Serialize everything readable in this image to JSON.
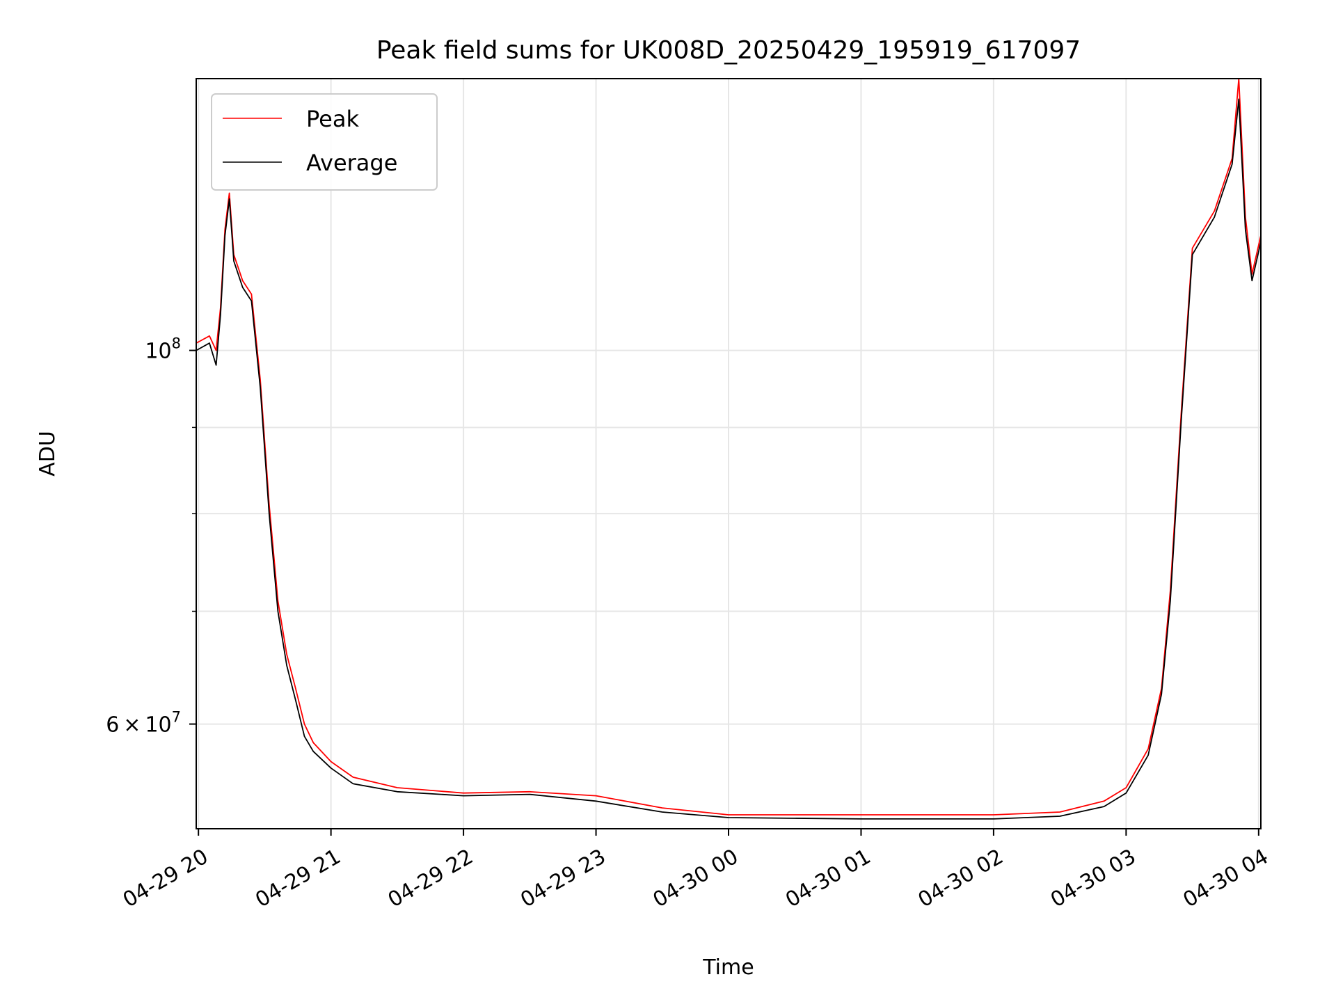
{
  "chart_data": {
    "type": "line",
    "title": "Peak field sums for UK008D_20250429_195919_617097",
    "xlabel": "Time",
    "ylabel": "ADU",
    "x_tick_labels": [
      "04-29 20",
      "04-29 21",
      "04-29 22",
      "04-29 23",
      "04-30 00",
      "04-30 01",
      "04-30 02",
      "04-30 03",
      "04-30 04"
    ],
    "x_ticks": [
      "2025-04-29 20:00",
      "2025-04-29 21:00",
      "2025-04-29 22:00",
      "2025-04-29 23:00",
      "2025-04-30 00:00",
      "2025-04-30 01:00",
      "2025-04-30 02:00",
      "2025-04-30 03:00",
      "2025-04-30 04:00"
    ],
    "xlim": [
      "2025-04-29 19:59",
      "2025-04-30 04:01"
    ],
    "y_scale": "log",
    "ylim": [
      52000000,
      145000000
    ],
    "y_major_ticks": [
      {
        "value": 100000000,
        "mantissa": "",
        "base": "10",
        "exp": "8"
      },
      {
        "value": 60000000,
        "mantissa": "6",
        "base": "10",
        "exp": "7"
      }
    ],
    "y_minor_ticks": [
      70000000,
      80000000,
      90000000
    ],
    "grid": true,
    "legend_position": "upper left",
    "series": [
      {
        "name": "Peak",
        "color": "#ff0000",
        "x": [
          "2025-04-29 19:59",
          "2025-04-29 20:05",
          "2025-04-29 20:08",
          "2025-04-29 20:10",
          "2025-04-29 20:12",
          "2025-04-29 20:14",
          "2025-04-29 20:16",
          "2025-04-29 20:18",
          "2025-04-29 20:20",
          "2025-04-29 20:24",
          "2025-04-29 20:28",
          "2025-04-29 20:32",
          "2025-04-29 20:36",
          "2025-04-29 20:40",
          "2025-04-29 20:44",
          "2025-04-29 20:48",
          "2025-04-29 20:52",
          "2025-04-29 21:00",
          "2025-04-29 21:10",
          "2025-04-29 21:30",
          "2025-04-29 22:00",
          "2025-04-29 22:30",
          "2025-04-29 23:00",
          "2025-04-29 23:30",
          "2025-04-30 00:00",
          "2025-04-30 01:00",
          "2025-04-30 02:00",
          "2025-04-30 02:30",
          "2025-04-30 02:50",
          "2025-04-30 03:00",
          "2025-04-30 03:10",
          "2025-04-30 03:16",
          "2025-04-30 03:20",
          "2025-04-30 03:25",
          "2025-04-30 03:30",
          "2025-04-30 03:40",
          "2025-04-30 03:48",
          "2025-04-30 03:51",
          "2025-04-30 03:54",
          "2025-04-30 03:57",
          "2025-04-30 04:01"
        ],
        "y": [
          101000000,
          102000000,
          100000000,
          106000000,
          118000000,
          124000000,
          114000000,
          112000000,
          110000000,
          108000000,
          96000000,
          81000000,
          71000000,
          66000000,
          63000000,
          60000000,
          58500000,
          57000000,
          55800000,
          55000000,
          54600000,
          54700000,
          54400000,
          53500000,
          53000000,
          53000000,
          53000000,
          53200000,
          54000000,
          55000000,
          58000000,
          63000000,
          72000000,
          92000000,
          115000000,
          121000000,
          130000000,
          145000000,
          120000000,
          111000000,
          117000000
        ]
      },
      {
        "name": "Average",
        "color": "#000000",
        "x": [
          "2025-04-29 19:59",
          "2025-04-29 20:05",
          "2025-04-29 20:08",
          "2025-04-29 20:10",
          "2025-04-29 20:12",
          "2025-04-29 20:14",
          "2025-04-29 20:16",
          "2025-04-29 20:18",
          "2025-04-29 20:20",
          "2025-04-29 20:24",
          "2025-04-29 20:28",
          "2025-04-29 20:32",
          "2025-04-29 20:36",
          "2025-04-29 20:40",
          "2025-04-29 20:44",
          "2025-04-29 20:48",
          "2025-04-29 20:52",
          "2025-04-29 21:00",
          "2025-04-29 21:10",
          "2025-04-29 21:30",
          "2025-04-29 22:00",
          "2025-04-29 22:30",
          "2025-04-29 23:00",
          "2025-04-29 23:30",
          "2025-04-30 00:00",
          "2025-04-30 01:00",
          "2025-04-30 02:00",
          "2025-04-30 02:30",
          "2025-04-30 02:50",
          "2025-04-30 03:00",
          "2025-04-30 03:10",
          "2025-04-30 03:16",
          "2025-04-30 03:20",
          "2025-04-30 03:25",
          "2025-04-30 03:30",
          "2025-04-30 03:40",
          "2025-04-30 03:48",
          "2025-04-30 03:51",
          "2025-04-30 03:54",
          "2025-04-30 03:57",
          "2025-04-30 04:01"
        ],
        "y": [
          100000000,
          101000000,
          98000000,
          105000000,
          117000000,
          123000000,
          113000000,
          111000000,
          109000000,
          107000000,
          95000000,
          80000000,
          70000000,
          65000000,
          62000000,
          59000000,
          57800000,
          56500000,
          55300000,
          54700000,
          54400000,
          54500000,
          54000000,
          53200000,
          52800000,
          52700000,
          52700000,
          52900000,
          53600000,
          54600000,
          57500000,
          62500000,
          71000000,
          91000000,
          114000000,
          120000000,
          129000000,
          141000000,
          118000000,
          110000000,
          116000000
        ]
      }
    ]
  }
}
